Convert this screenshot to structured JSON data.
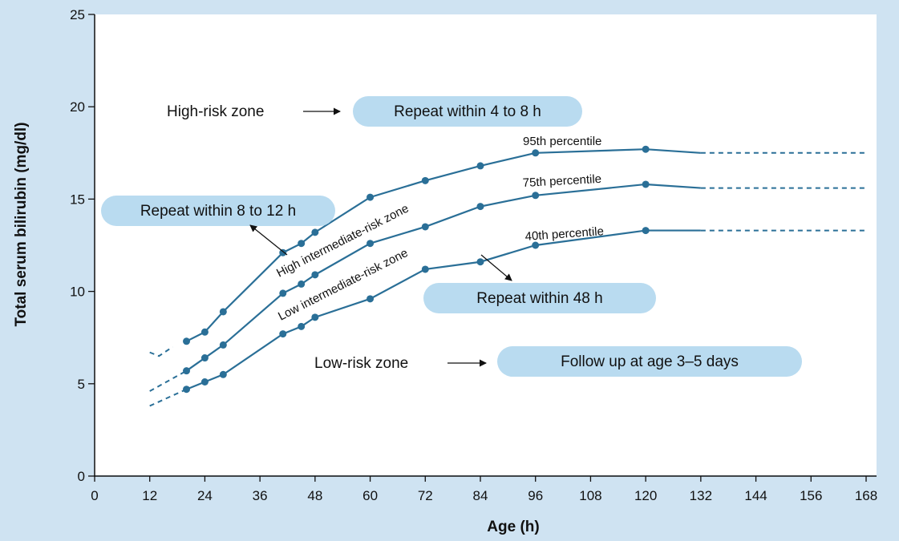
{
  "chart_data": {
    "type": "line",
    "xlabel": "Age (h)",
    "ylabel": "Total serum bilirubin (mg/dl)",
    "xlim": [
      0,
      168
    ],
    "ylim": [
      0,
      25
    ],
    "xticks": [
      0,
      12,
      24,
      36,
      48,
      60,
      72,
      84,
      96,
      108,
      120,
      132,
      144,
      156,
      168
    ],
    "yticks": [
      0,
      5,
      10,
      15,
      20,
      25
    ],
    "grid": false,
    "series_color": "#2a6f97",
    "series": [
      {
        "name": "95th percentile",
        "x": [
          20,
          24,
          28,
          41,
          45,
          48,
          60,
          72,
          84,
          96,
          120,
          132
        ],
        "y": [
          7.3,
          7.8,
          8.9,
          12.1,
          12.6,
          13.2,
          15.1,
          16.0,
          16.8,
          17.5,
          17.7,
          17.5
        ],
        "lead_in": {
          "x": [
            12,
            14,
            17
          ],
          "y": [
            6.7,
            6.5,
            7.0
          ]
        },
        "tail": {
          "x": [
            132,
            168
          ],
          "y": [
            17.5,
            17.5
          ]
        }
      },
      {
        "name": "75th percentile",
        "x": [
          20,
          24,
          28,
          41,
          45,
          48,
          60,
          72,
          84,
          96,
          120,
          132
        ],
        "y": [
          5.7,
          6.4,
          7.1,
          9.9,
          10.4,
          10.9,
          12.6,
          13.5,
          14.6,
          15.2,
          15.8,
          15.6
        ],
        "lead_in": {
          "x": [
            12,
            20
          ],
          "y": [
            4.6,
            5.7
          ]
        },
        "tail": {
          "x": [
            132,
            168
          ],
          "y": [
            15.6,
            15.6
          ]
        }
      },
      {
        "name": "40th percentile",
        "x": [
          20,
          24,
          28,
          41,
          45,
          48,
          60,
          72,
          84,
          96,
          120,
          132
        ],
        "y": [
          4.7,
          5.1,
          5.5,
          7.7,
          8.1,
          8.6,
          9.6,
          11.2,
          11.6,
          12.5,
          13.3,
          13.3
        ],
        "lead_in": {
          "x": [
            12,
            20
          ],
          "y": [
            3.8,
            4.7
          ]
        },
        "tail": {
          "x": [
            132,
            168
          ],
          "y": [
            13.3,
            13.3
          ]
        }
      }
    ],
    "annotations": {
      "zone_high": "High-risk zone",
      "zone_high_intermediate": "High intermediate-risk zone",
      "zone_low_intermediate": "Low intermediate-risk zone",
      "zone_low": "Low-risk zone",
      "pill_high": "Repeat within 4 to 8 h",
      "pill_high_intermediate": "Repeat within 8 to 12 h",
      "pill_low_intermediate": "Repeat within 48 h",
      "pill_low": "Follow up at age 3–5 days",
      "pill_color": "#b9dbf0"
    }
  }
}
